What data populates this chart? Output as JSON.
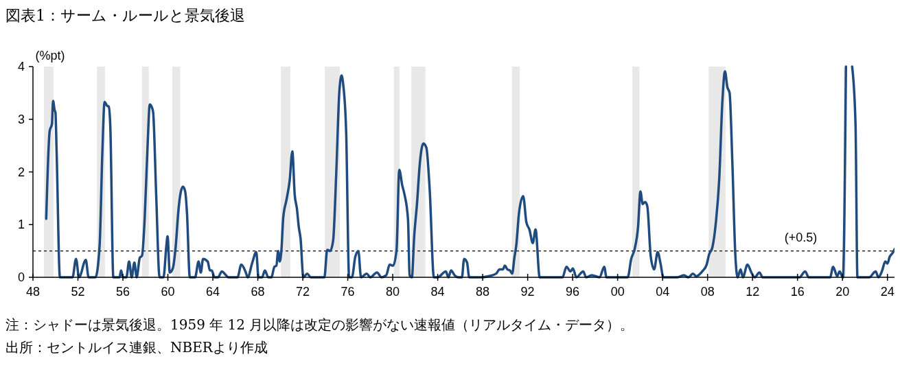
{
  "chart_data": {
    "type": "line",
    "title": "図表1：サーム・ルールと景気後退",
    "ylabel": "(%pt)",
    "annotations": [
      "注：シャドーは景気後退。1959 年 12 月以降は改定の影響がない速報値（リアルタイム・データ）。",
      "出所：セントルイス連銀、NBERより作成"
    ],
    "x": [
      1949.18,
      1949.49,
      1949.69,
      1949.79,
      1949.93,
      1950.0,
      1950.1,
      1950.4,
      1951.52,
      1951.83,
      1952.1,
      1952.7,
      1952.95,
      1953.56,
      1953.93,
      1954.17,
      1954.37,
      1954.58,
      1954.74,
      1954.88,
      1955.15,
      1955.7,
      1955.84,
      1956.0,
      1956.31,
      1956.55,
      1956.78,
      1957.02,
      1957.23,
      1957.5,
      1957.7,
      1957.94,
      1958.2,
      1958.39,
      1958.55,
      1958.69,
      1958.96,
      1959.26,
      1959.61,
      1959.87,
      1959.97,
      1960.17,
      1960.44,
      1960.69,
      1960.95,
      1961.14,
      1961.34,
      1961.54,
      1961.7,
      1961.95,
      1962.42,
      1962.73,
      1962.93,
      1963.13,
      1963.54,
      1963.74,
      1963.9,
      1964.15,
      1964.46,
      1964.8,
      1965.17,
      1965.37,
      1966.19,
      1966.53,
      1966.9,
      1967.1,
      1967.51,
      1967.86,
      1968.06,
      1968.38,
      1968.63,
      1968.93,
      1969.2,
      1969.48,
      1969.65,
      1969.81,
      1969.95,
      1970.1,
      1970.26,
      1970.56,
      1970.83,
      1971.07,
      1971.28,
      1971.48,
      1971.64,
      1971.8,
      1972.05,
      1972.4,
      1972.7,
      1973.92,
      1974.17,
      1974.43,
      1974.7,
      1974.98,
      1975.25,
      1975.45,
      1975.6,
      1975.86,
      1976.12,
      1976.37,
      1976.67,
      1976.94,
      1977.18,
      1977.69,
      1978.0,
      1978.6,
      1979.0,
      1979.42,
      1979.73,
      1980.03,
      1980.34,
      1980.58,
      1980.85,
      1981.05,
      1981.36,
      1981.5,
      1981.7,
      1981.91,
      1982.17,
      1982.38,
      1982.72,
      1982.99,
      1983.29,
      1983.66,
      1984.0,
      1984.72,
      1984.95,
      1985.19,
      1985.5,
      1985.84,
      1986.15,
      1986.35,
      1986.61,
      1986.8,
      1987.87,
      1988.5,
      1989.2,
      1989.5,
      1989.8,
      1989.97,
      1990.2,
      1990.42,
      1990.62,
      1990.83,
      1990.99,
      1991.23,
      1991.6,
      1991.89,
      1992.15,
      1992.46,
      1992.7,
      1993.07,
      1995.1,
      1995.45,
      1995.82,
      1996.02,
      1996.33,
      1996.94,
      1997.2,
      1997.7,
      1998.4,
      1998.81,
      1999.01,
      2000.09,
      2000.9,
      2001.21,
      2001.52,
      2001.82,
      2002.03,
      2002.23,
      2002.44,
      2002.64,
      2002.95,
      2003.25,
      2003.56,
      2003.82,
      2004.07,
      2005.3,
      2005.89,
      2006.3,
      2006.7,
      2007.0,
      2007.52,
      2007.92,
      2008.13,
      2008.43,
      2008.74,
      2009.04,
      2009.31,
      2009.55,
      2009.76,
      2009.96,
      2010.2,
      2010.47,
      2010.67,
      2010.94,
      2011.14,
      2011.55,
      2011.9,
      2012.2,
      2012.61,
      2012.9,
      2016.17,
      2016.68,
      2017.0,
      2018.9,
      2019.17,
      2019.53,
      2019.74,
      2020.04,
      2020.31,
      2020.6,
      2020.86,
      2021.16,
      2021.33,
      2022.38,
      2022.95,
      2023.2,
      2023.5,
      2023.81,
      2024.0,
      2024.2,
      2024.45,
      2024.66
    ],
    "values": [
      1.11,
      2.78,
      2.91,
      3.35,
      3.17,
      3.13,
      2.43,
      0,
      0,
      0.35,
      0,
      0.33,
      0,
      0,
      0.61,
      2.35,
      3.33,
      3.26,
      3.24,
      2.87,
      0,
      0,
      0.13,
      0,
      0,
      0.3,
      0,
      0.28,
      0,
      0.37,
      0.41,
      1.13,
      2.52,
      3.28,
      3.24,
      3.13,
      1.57,
      0,
      0,
      0.61,
      0.78,
      0.09,
      0.17,
      0.57,
      1.3,
      1.61,
      1.72,
      1.63,
      1.22,
      0,
      0,
      0.3,
      0.09,
      0.35,
      0.3,
      0.13,
      0.13,
      0,
      0,
      0.11,
      0.04,
      0,
      0,
      0.24,
      0.11,
      0,
      0.28,
      0.48,
      0,
      0,
      0.13,
      0,
      0,
      0.2,
      0.22,
      0.5,
      0.3,
      0.52,
      1.13,
      1.48,
      1.83,
      2.39,
      1.57,
      1.3,
      0.96,
      0.74,
      0,
      0.07,
      0,
      0,
      0.52,
      0.5,
      0.7,
      2.0,
      3.52,
      3.83,
      3.65,
      2.74,
      0,
      0,
      0.39,
      0.5,
      0,
      0.07,
      0,
      0.09,
      0,
      0.04,
      0.24,
      0.22,
      0.52,
      2.04,
      1.74,
      1.57,
      1.09,
      0.04,
      0,
      0.78,
      1.43,
      2.09,
      2.54,
      2.46,
      1.65,
      0,
      0,
      0.11,
      0,
      0.13,
      0.04,
      0,
      0,
      0.35,
      0.28,
      0,
      0,
      0.02,
      0.07,
      0.15,
      0.15,
      0.22,
      0.15,
      0.13,
      0.07,
      0.39,
      0.61,
      1.22,
      1.54,
      1.04,
      0.91,
      0.65,
      0.91,
      0,
      0,
      0.2,
      0.11,
      0.17,
      0,
      0.11,
      0,
      0.04,
      0,
      0.2,
      0,
      0,
      0,
      0.35,
      0.54,
      0.96,
      1.63,
      1.39,
      1.43,
      1.35,
      0.39,
      0.15,
      0.48,
      0.26,
      0,
      0,
      0.04,
      0,
      0.07,
      0.02,
      0.11,
      0.24,
      0.43,
      0.57,
      1.04,
      1.87,
      3.3,
      3.91,
      3.61,
      3.5,
      2.22,
      0.43,
      0,
      0.15,
      0,
      0.24,
      0.09,
      0,
      0.09,
      0,
      0,
      0.11,
      0,
      0,
      0.2,
      0.02,
      0.11,
      0,
      4,
      null,
      4,
      2.91,
      0,
      0,
      0.11,
      0,
      0.11,
      0.3,
      0.26,
      0.39,
      0.46,
      0.54
    ],
    "color": "#1f4b7f",
    "xlim": [
      1948,
      2024.75
    ],
    "xticks": [
      {
        "value": 1948,
        "label": "48"
      },
      {
        "value": 1952,
        "label": "52"
      },
      {
        "value": 1956,
        "label": "56"
      },
      {
        "value": 1960,
        "label": "60"
      },
      {
        "value": 1964,
        "label": "64"
      },
      {
        "value": 1968,
        "label": "68"
      },
      {
        "value": 1972,
        "label": "72"
      },
      {
        "value": 1976,
        "label": "76"
      },
      {
        "value": 1980,
        "label": "80"
      },
      {
        "value": 1984,
        "label": "84"
      },
      {
        "value": 1988,
        "label": "88"
      },
      {
        "value": 1992,
        "label": "92"
      },
      {
        "value": 1996,
        "label": "96"
      },
      {
        "value": 2000,
        "label": "00"
      },
      {
        "value": 2004,
        "label": "04"
      },
      {
        "value": 2008,
        "label": "08"
      },
      {
        "value": 2012,
        "label": "12"
      },
      {
        "value": 2016,
        "label": "16"
      },
      {
        "value": 2020,
        "label": "20"
      },
      {
        "value": 2024,
        "label": "24"
      }
    ],
    "ylim": [
      0,
      4
    ],
    "yticks": [
      0,
      1,
      2,
      3,
      4
    ],
    "grid": false,
    "ref_lines": [
      {
        "axis": "y",
        "value": 0.5,
        "label": "(+0.5)",
        "color": "#000000",
        "line_style": "dashed"
      }
    ],
    "bands": [
      {
        "axis": "x",
        "from": 1948.98,
        "to": 1949.83,
        "color": "#e8e8e8"
      },
      {
        "axis": "x",
        "from": 1953.7,
        "to": 1954.4,
        "color": "#e8e8e8"
      },
      {
        "axis": "x",
        "from": 1957.7,
        "to": 1958.3,
        "color": "#e8e8e8"
      },
      {
        "axis": "x",
        "from": 1960.4,
        "to": 1961.1,
        "color": "#e8e8e8"
      },
      {
        "axis": "x",
        "from": 1970.05,
        "to": 1970.9,
        "color": "#e8e8e8"
      },
      {
        "axis": "x",
        "from": 1973.96,
        "to": 1975.3,
        "color": "#e8e8e8"
      },
      {
        "axis": "x",
        "from": 1980.1,
        "to": 1980.6,
        "color": "#e8e8e8"
      },
      {
        "axis": "x",
        "from": 1981.66,
        "to": 1982.9,
        "color": "#e8e8e8"
      },
      {
        "axis": "x",
        "from": 1990.6,
        "to": 1991.3,
        "color": "#e8e8e8"
      },
      {
        "axis": "x",
        "from": 2001.3,
        "to": 2001.94,
        "color": "#e8e8e8"
      },
      {
        "axis": "x",
        "from": 2008.1,
        "to": 2009.6,
        "color": "#e8e8e8"
      },
      {
        "axis": "x",
        "from": 2020.1,
        "to": 2020.3,
        "color": "#e8e8e8"
      }
    ]
  }
}
